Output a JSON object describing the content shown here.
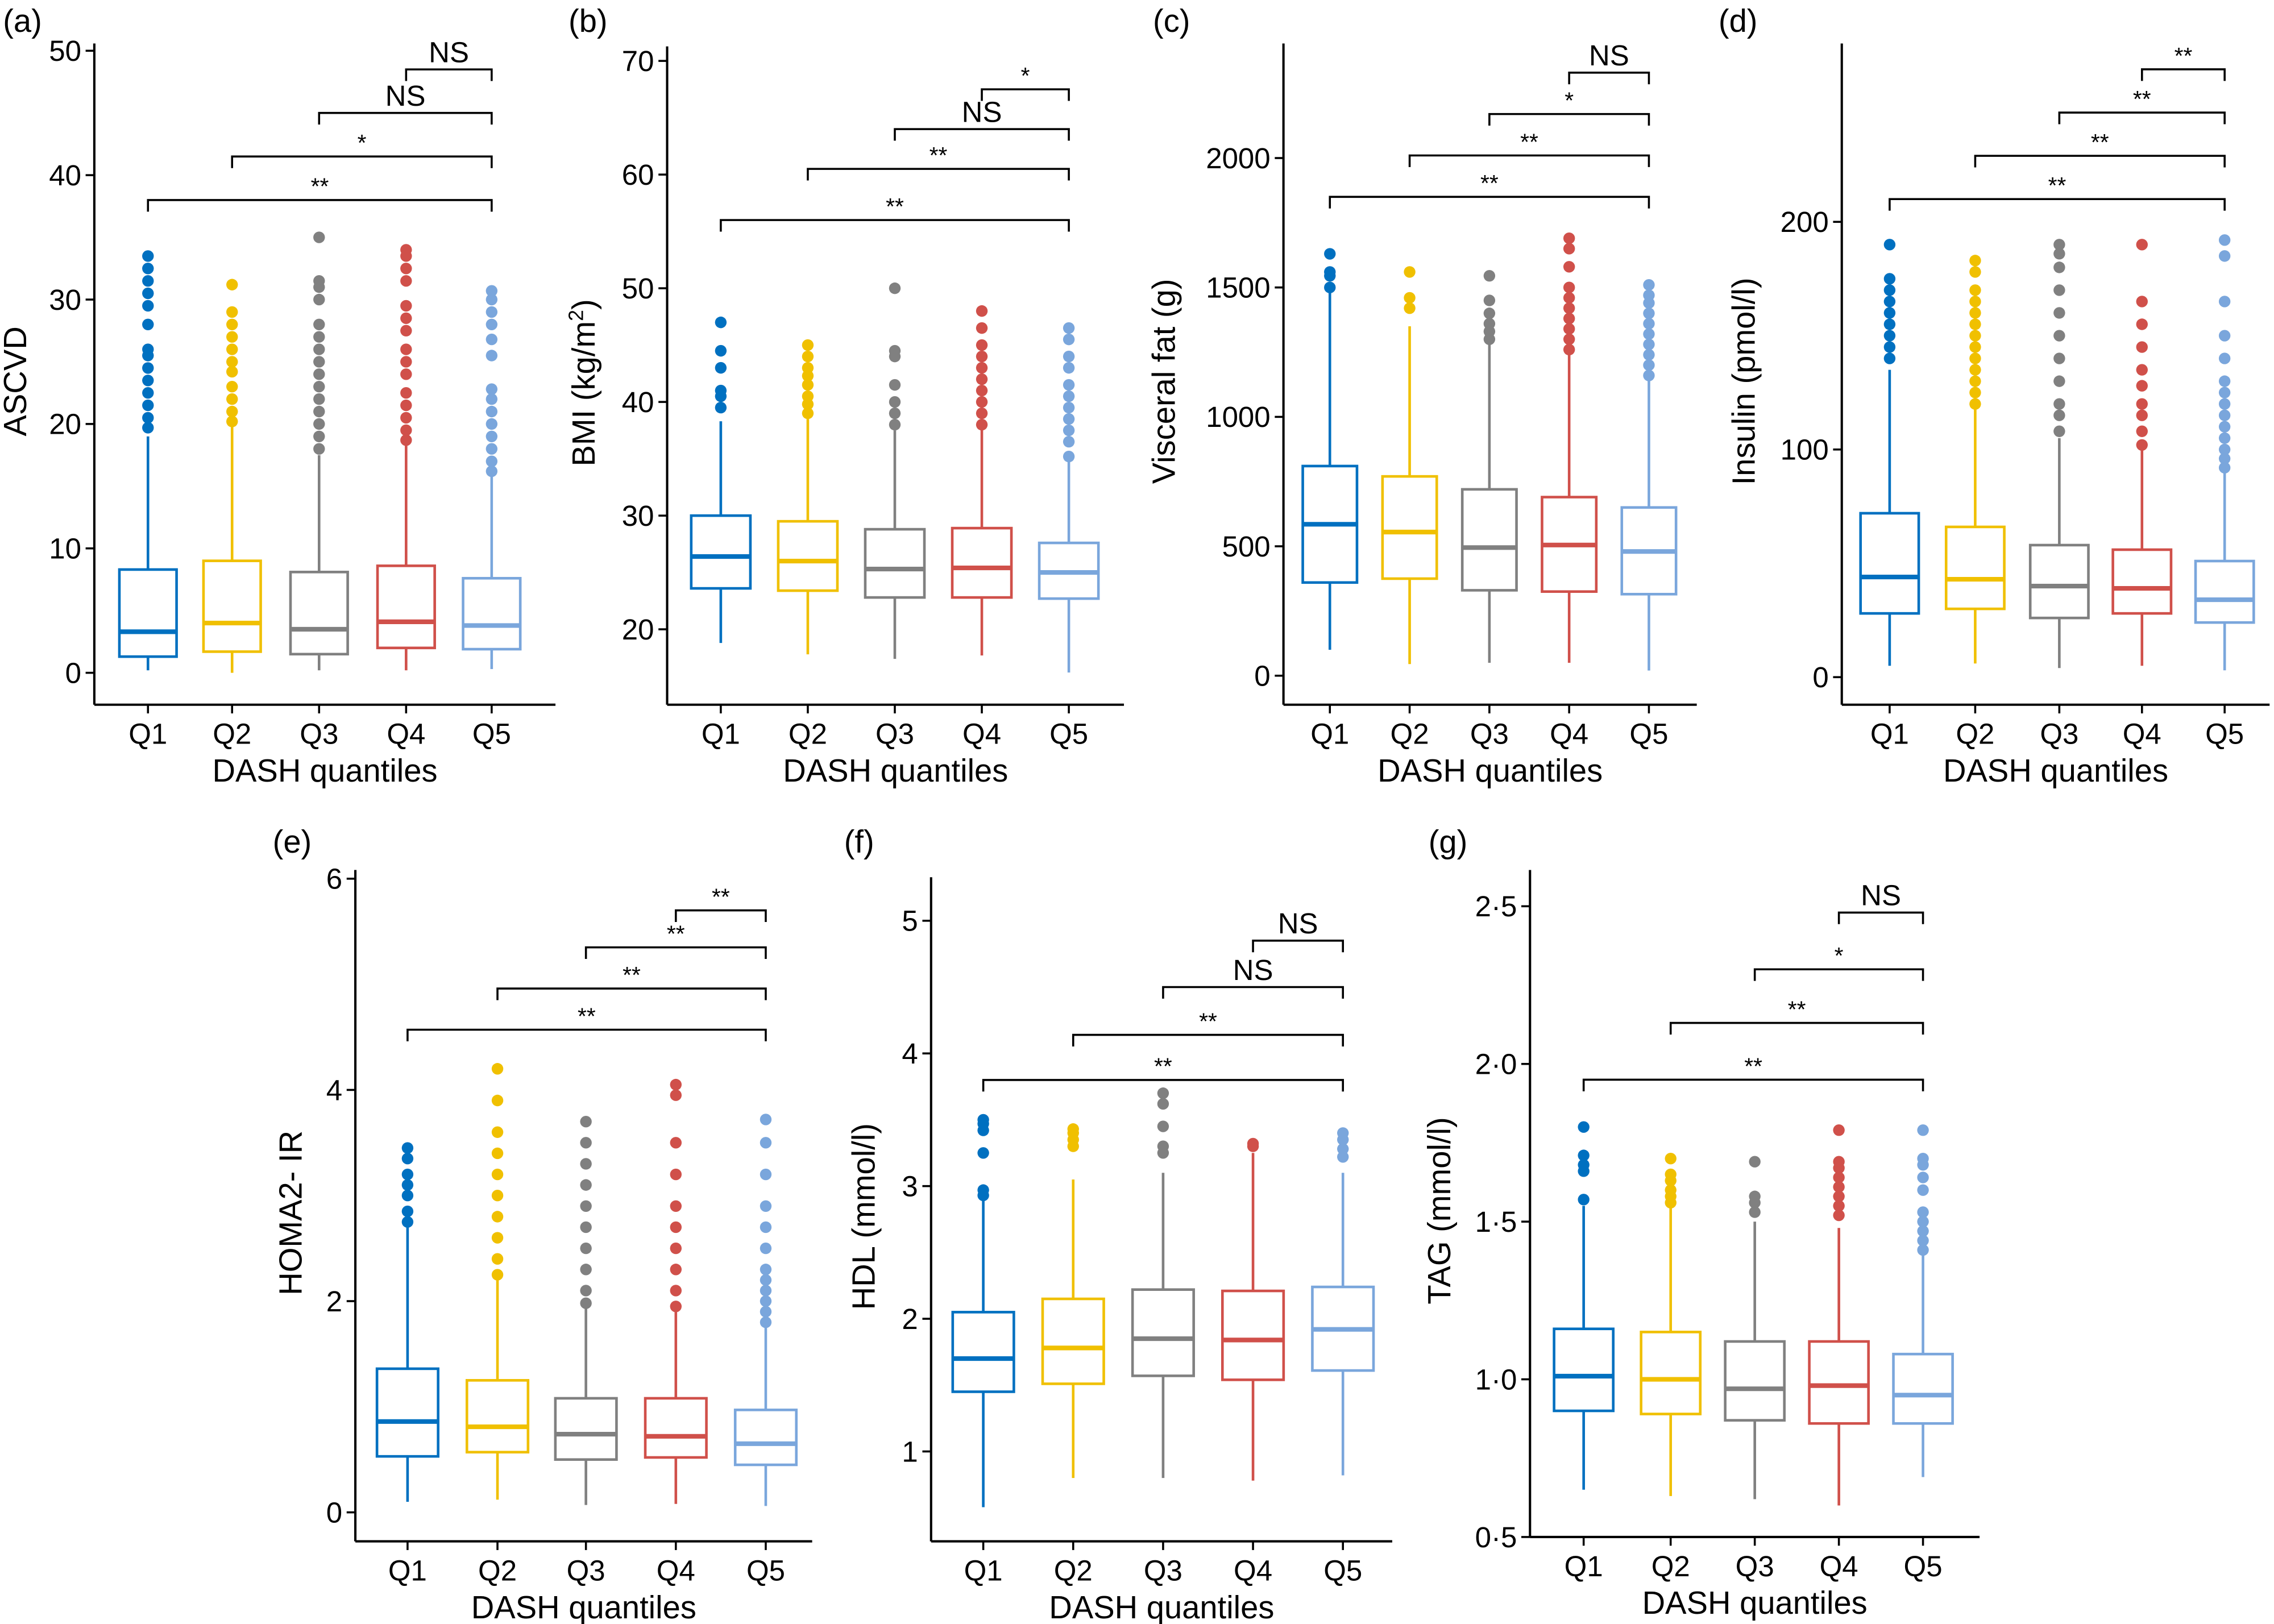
{
  "chart_data": [
    {
      "type": "box",
      "panel_label": "(a)",
      "ylabel": "ASCVD",
      "xlabel": "DASH quantiles",
      "categories": [
        "Q1",
        "Q2",
        "Q3",
        "Q4",
        "Q5"
      ],
      "yticks": [
        0,
        10,
        20,
        30,
        40,
        50
      ],
      "ytick_labels": [
        "0",
        "10",
        "20",
        "30",
        "40",
        "50"
      ],
      "ylim": [
        -2.6,
        50.6
      ],
      "boxes": [
        {
          "low": 0.2,
          "q1": 1.3,
          "median": 3.3,
          "q3": 8.3,
          "high": 19,
          "outliers": [
            19.7,
            20.5,
            21.5,
            22.5,
            23.5,
            24.5,
            25.5,
            26,
            28,
            29.5,
            30.5,
            31.5,
            32.5,
            33.5
          ]
        },
        {
          "low": 0,
          "q1": 1.7,
          "median": 4,
          "q3": 9,
          "high": 20,
          "outliers": [
            20.2,
            21,
            22,
            23,
            24.2,
            25,
            26,
            27,
            28,
            29,
            31.2
          ]
        },
        {
          "low": 0.2,
          "q1": 1.5,
          "median": 3.5,
          "q3": 8.1,
          "high": 17.5,
          "outliers": [
            18,
            19,
            20,
            21,
            22,
            23,
            24,
            25,
            26,
            27,
            28,
            30,
            31,
            31.5,
            35
          ]
        },
        {
          "low": 0.2,
          "q1": 2,
          "median": 4.1,
          "q3": 8.6,
          "high": 18.5,
          "outliers": [
            18.7,
            19.5,
            20.5,
            21.5,
            22.5,
            24,
            25,
            26,
            27.5,
            28.5,
            29.5,
            31.5,
            32.5,
            33.5,
            34
          ]
        },
        {
          "low": 0.3,
          "q1": 1.9,
          "median": 3.8,
          "q3": 7.6,
          "high": 16,
          "outliers": [
            16.2,
            17,
            18,
            19,
            20,
            21,
            22,
            22.8,
            25.5,
            26.8,
            28,
            29,
            30,
            30.7
          ]
        }
      ],
      "comparisons": [
        {
          "from": "Q4",
          "to": "Q5",
          "y": 48.5,
          "label": "NS"
        },
        {
          "from": "Q3",
          "to": "Q5",
          "y": 45,
          "label": "NS"
        },
        {
          "from": "Q2",
          "to": "Q5",
          "y": 41.5,
          "label": "*"
        },
        {
          "from": "Q1",
          "to": "Q5",
          "y": 38,
          "label": "**"
        }
      ]
    },
    {
      "type": "box",
      "panel_label": "(b)",
      "ylabel": "BMI (kg/m",
      "ylabel_sup": "2",
      "ylabel_end": ")",
      "xlabel": "DASH quantiles",
      "categories": [
        "Q1",
        "Q2",
        "Q3",
        "Q4",
        "Q5"
      ],
      "yticks": [
        20,
        30,
        40,
        50,
        60,
        70
      ],
      "ytick_labels": [
        "20",
        "30",
        "40",
        "50",
        "60",
        "70"
      ],
      "ylim": [
        13.4,
        72.5
      ],
      "boxes": [
        {
          "low": 18.8,
          "q1": 23.6,
          "median": 26.4,
          "q3": 30,
          "high": 38.3,
          "outliers": [
            39.5,
            40.5,
            41,
            43,
            44.5,
            47
          ]
        },
        {
          "low": 17.8,
          "q1": 23.4,
          "median": 26,
          "q3": 29.5,
          "high": 38.5,
          "outliers": [
            39,
            39.8,
            40.5,
            41.5,
            42.3,
            43,
            44,
            45
          ]
        },
        {
          "low": 17.4,
          "q1": 22.8,
          "median": 25.3,
          "q3": 28.8,
          "high": 37.5,
          "outliers": [
            38,
            39,
            40,
            41.5,
            44,
            44.5,
            50
          ]
        },
        {
          "low": 17.7,
          "q1": 22.8,
          "median": 25.4,
          "q3": 28.9,
          "high": 37.8,
          "outliers": [
            38,
            39,
            40,
            41,
            42,
            43,
            44,
            45,
            46.5,
            48
          ]
        },
        {
          "low": 16.2,
          "q1": 22.7,
          "median": 25,
          "q3": 27.6,
          "high": 35,
          "outliers": [
            35.2,
            36.5,
            37.5,
            38.5,
            39.5,
            40.5,
            41.5,
            43,
            44,
            45.5,
            46.5
          ]
        }
      ],
      "comparisons": [
        {
          "from": "Q4",
          "to": "Q5",
          "y": 67.5,
          "label": "*"
        },
        {
          "from": "Q3",
          "to": "Q5",
          "y": 64,
          "label": "NS"
        },
        {
          "from": "Q2",
          "to": "Q5",
          "y": 60.5,
          "label": "**"
        },
        {
          "from": "Q1",
          "to": "Q5",
          "y": 56,
          "label": "**"
        }
      ]
    },
    {
      "type": "box",
      "panel_label": "(c)",
      "ylabel": "Visceral fat (g)",
      "xlabel": "DASH quantiles",
      "categories": [
        "Q1",
        "Q2",
        "Q3",
        "Q4",
        "Q5"
      ],
      "yticks": [
        0,
        500,
        1000,
        1500,
        2000
      ],
      "ytick_labels": [
        "0",
        "500",
        "1000",
        "1500",
        "2000"
      ],
      "ylim": [
        -112,
        2440
      ],
      "boxes": [
        {
          "low": 100,
          "q1": 360,
          "median": 585,
          "q3": 810,
          "high": 1480,
          "outliers": [
            1500,
            1545,
            1560,
            1630
          ]
        },
        {
          "low": 45,
          "q1": 375,
          "median": 555,
          "q3": 770,
          "high": 1350,
          "outliers": [
            1420,
            1460,
            1560
          ]
        },
        {
          "low": 50,
          "q1": 330,
          "median": 495,
          "q3": 720,
          "high": 1280,
          "outliers": [
            1300,
            1330,
            1360,
            1400,
            1450,
            1545
          ]
        },
        {
          "low": 50,
          "q1": 325,
          "median": 505,
          "q3": 690,
          "high": 1250,
          "outliers": [
            1260,
            1300,
            1340,
            1380,
            1420,
            1460,
            1500,
            1580,
            1650,
            1690
          ]
        },
        {
          "low": 20,
          "q1": 315,
          "median": 480,
          "q3": 650,
          "high": 1150,
          "outliers": [
            1160,
            1200,
            1240,
            1280,
            1320,
            1360,
            1400,
            1440,
            1470,
            1510
          ]
        }
      ],
      "comparisons": [
        {
          "from": "Q4",
          "to": "Q5",
          "y": 2330,
          "label": "NS"
        },
        {
          "from": "Q3",
          "to": "Q5",
          "y": 2170,
          "label": "*"
        },
        {
          "from": "Q2",
          "to": "Q5",
          "y": 2010,
          "label": "**"
        },
        {
          "from": "Q1",
          "to": "Q5",
          "y": 1850,
          "label": "**"
        }
      ]
    },
    {
      "type": "box",
      "panel_label": "(d)",
      "ylabel": "Insulin (pmol/l)",
      "xlabel": "DASH quantiles",
      "categories": [
        "Q1",
        "Q2",
        "Q3",
        "Q4",
        "Q5"
      ],
      "yticks": [
        0,
        100,
        200
      ],
      "ytick_labels": [
        "0",
        "100",
        "200"
      ],
      "ylim": [
        -12,
        290
      ],
      "boxes": [
        {
          "low": 5,
          "q1": 28,
          "median": 44,
          "q3": 72,
          "high": 135,
          "outliers": [
            140,
            145,
            150,
            155,
            160,
            165,
            170,
            175,
            190
          ]
        },
        {
          "low": 6,
          "q1": 30,
          "median": 43,
          "q3": 66,
          "high": 118,
          "outliers": [
            120,
            125,
            130,
            135,
            140,
            145,
            150,
            155,
            160,
            165,
            170,
            178,
            183
          ]
        },
        {
          "low": 4,
          "q1": 26,
          "median": 40,
          "q3": 58,
          "high": 105,
          "outliers": [
            108,
            115,
            120,
            130,
            140,
            150,
            160,
            170,
            180,
            186,
            190
          ]
        },
        {
          "low": 5,
          "q1": 28,
          "median": 39,
          "q3": 56,
          "high": 100,
          "outliers": [
            102,
            108,
            115,
            120,
            128,
            135,
            145,
            155,
            165,
            190
          ]
        },
        {
          "low": 3,
          "q1": 24,
          "median": 34,
          "q3": 51,
          "high": 90,
          "outliers": [
            92,
            96,
            100,
            105,
            110,
            115,
            120,
            125,
            130,
            140,
            150,
            165,
            185,
            192
          ]
        }
      ],
      "comparisons": [
        {
          "from": "Q4",
          "to": "Q5",
          "y": 267,
          "label": "**"
        },
        {
          "from": "Q3",
          "to": "Q5",
          "y": 248,
          "label": "**"
        },
        {
          "from": "Q2",
          "to": "Q5",
          "y": 229,
          "label": "**"
        },
        {
          "from": "Q1",
          "to": "Q5",
          "y": 210,
          "label": "**"
        }
      ]
    },
    {
      "type": "box",
      "panel_label": "(e)",
      "ylabel": "HOMA2- IR",
      "xlabel": "DASH quantiles",
      "categories": [
        "Q1",
        "Q2",
        "Q3",
        "Q4",
        "Q5"
      ],
      "yticks": [
        0,
        2,
        4,
        6
      ],
      "ytick_labels": [
        "0",
        "2",
        "4",
        "6"
      ],
      "ylim": [
        -0.27,
        6.08
      ],
      "boxes": [
        {
          "low": 0.1,
          "q1": 0.53,
          "median": 0.86,
          "q3": 1.36,
          "high": 2.7,
          "outliers": [
            2.75,
            2.85,
            3.0,
            3.1,
            3.2,
            3.35,
            3.45
          ]
        },
        {
          "low": 0.12,
          "q1": 0.57,
          "median": 0.81,
          "q3": 1.25,
          "high": 2.2,
          "outliers": [
            2.25,
            2.4,
            2.6,
            2.8,
            3.0,
            3.2,
            3.4,
            3.6,
            3.9,
            4.2
          ]
        },
        {
          "low": 0.07,
          "q1": 0.5,
          "median": 0.74,
          "q3": 1.08,
          "high": 1.95,
          "outliers": [
            1.98,
            2.1,
            2.3,
            2.5,
            2.7,
            2.9,
            3.1,
            3.3,
            3.5,
            3.7
          ]
        },
        {
          "low": 0.08,
          "q1": 0.52,
          "median": 0.72,
          "q3": 1.08,
          "high": 1.9,
          "outliers": [
            1.95,
            2.1,
            2.3,
            2.5,
            2.7,
            2.9,
            3.2,
            3.5,
            3.95,
            4.05
          ]
        },
        {
          "low": 0.06,
          "q1": 0.45,
          "median": 0.65,
          "q3": 0.97,
          "high": 1.75,
          "outliers": [
            1.8,
            1.9,
            2.0,
            2.1,
            2.2,
            2.3,
            2.5,
            2.7,
            2.9,
            3.2,
            3.5,
            3.72
          ]
        }
      ],
      "comparisons": [
        {
          "from": "Q4",
          "to": "Q5",
          "y": 5.7,
          "label": "**"
        },
        {
          "from": "Q3",
          "to": "Q5",
          "y": 5.35,
          "label": "**"
        },
        {
          "from": "Q2",
          "to": "Q5",
          "y": 4.96,
          "label": "**"
        },
        {
          "from": "Q1",
          "to": "Q5",
          "y": 4.57,
          "label": "**"
        }
      ]
    },
    {
      "type": "box",
      "panel_label": "(f)",
      "ylabel": "HDL (mmol/l)",
      "xlabel": "DASH quantiles",
      "categories": [
        "Q1",
        "Q2",
        "Q3",
        "Q4",
        "Q5"
      ],
      "yticks": [
        1,
        2,
        3,
        4,
        5
      ],
      "ytick_labels": [
        "1",
        "2",
        "3",
        "4",
        "5"
      ],
      "ylim": [
        0.32,
        5.33
      ],
      "boxes": [
        {
          "low": 0.58,
          "q1": 1.45,
          "median": 1.7,
          "q3": 2.05,
          "high": 2.9,
          "outliers": [
            2.93,
            2.97,
            3.25,
            3.42,
            3.47,
            3.5
          ]
        },
        {
          "low": 0.8,
          "q1": 1.51,
          "median": 1.78,
          "q3": 2.15,
          "high": 3.05,
          "outliers": [
            3.3,
            3.35,
            3.4,
            3.43
          ]
        },
        {
          "low": 0.8,
          "q1": 1.57,
          "median": 1.85,
          "q3": 2.22,
          "high": 3.1,
          "outliers": [
            3.25,
            3.3,
            3.45,
            3.62,
            3.7
          ]
        },
        {
          "low": 0.78,
          "q1": 1.54,
          "median": 1.84,
          "q3": 2.21,
          "high": 3.25,
          "outliers": [
            3.3,
            3.32
          ]
        },
        {
          "low": 0.82,
          "q1": 1.61,
          "median": 1.92,
          "q3": 2.24,
          "high": 3.1,
          "outliers": [
            3.22,
            3.28,
            3.35,
            3.4
          ]
        }
      ],
      "comparisons": [
        {
          "from": "Q4",
          "to": "Q5",
          "y": 4.85,
          "label": "NS"
        },
        {
          "from": "Q3",
          "to": "Q5",
          "y": 4.5,
          "label": "NS"
        },
        {
          "from": "Q2",
          "to": "Q5",
          "y": 4.14,
          "label": "**"
        },
        {
          "from": "Q1",
          "to": "Q5",
          "y": 3.8,
          "label": "**"
        }
      ]
    },
    {
      "type": "box",
      "panel_label": "(g)",
      "ylabel": "TAG (mmol/l)",
      "xlabel": "DASH quantiles",
      "categories": [
        "Q1",
        "Q2",
        "Q3",
        "Q4",
        "Q5"
      ],
      "yticks": [
        0.5,
        1.0,
        1.5,
        2.0,
        2.5
      ],
      "ytick_labels": [
        "0·5",
        "1·0",
        "1·5",
        "2·0",
        "2·5"
      ],
      "ylim": [
        0.5,
        2.62
      ],
      "boxes": [
        {
          "low": 0.65,
          "q1": 0.9,
          "median": 1.01,
          "q3": 1.16,
          "high": 1.55,
          "outliers": [
            1.57,
            1.66,
            1.68,
            1.71,
            1.8
          ]
        },
        {
          "low": 0.63,
          "q1": 0.89,
          "median": 1.0,
          "q3": 1.15,
          "high": 1.55,
          "outliers": [
            1.56,
            1.58,
            1.6,
            1.63,
            1.65,
            1.7
          ]
        },
        {
          "low": 0.62,
          "q1": 0.87,
          "median": 0.97,
          "q3": 1.12,
          "high": 1.5,
          "outliers": [
            1.53,
            1.56,
            1.58,
            1.69
          ]
        },
        {
          "low": 0.6,
          "q1": 0.86,
          "median": 0.98,
          "q3": 1.12,
          "high": 1.48,
          "outliers": [
            1.52,
            1.55,
            1.58,
            1.61,
            1.64,
            1.67,
            1.69,
            1.79
          ]
        },
        {
          "low": 0.69,
          "q1": 0.86,
          "median": 0.95,
          "q3": 1.08,
          "high": 1.4,
          "outliers": [
            1.41,
            1.44,
            1.47,
            1.5,
            1.53,
            1.6,
            1.64,
            1.68,
            1.7,
            1.79
          ]
        }
      ],
      "comparisons": [
        {
          "from": "Q4",
          "to": "Q5",
          "y": 2.48,
          "label": "NS"
        },
        {
          "from": "Q3",
          "to": "Q5",
          "y": 2.3,
          "label": "*"
        },
        {
          "from": "Q2",
          "to": "Q5",
          "y": 2.13,
          "label": "**"
        },
        {
          "from": "Q1",
          "to": "Q5",
          "y": 1.95,
          "label": "**"
        }
      ]
    }
  ],
  "colors": {
    "Q1": "#0070C0",
    "Q2": "#F0C000",
    "Q3": "#808080",
    "Q4": "#D0504A",
    "Q5": "#7AA6DC"
  }
}
